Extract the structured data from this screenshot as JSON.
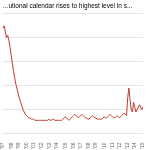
{
  "chart_data": {
    "type": "line",
    "title": "...utional calendar rises to highest level in s...",
    "categories": [
      "'97",
      null,
      null,
      null,
      null,
      null,
      null,
      "'98",
      null,
      null,
      null,
      null,
      null,
      "'99",
      null,
      null,
      null,
      null,
      null,
      null,
      "'00",
      null,
      null,
      null,
      null,
      null,
      "'01",
      null,
      null,
      null,
      null,
      null,
      null,
      "'02",
      null,
      null,
      null,
      null,
      null,
      null,
      "'03",
      null,
      null,
      null,
      null,
      null,
      "'04",
      null,
      null,
      null,
      null,
      null,
      null,
      "'05",
      null,
      null,
      null,
      null,
      null,
      null,
      "'06",
      null,
      null,
      null,
      null,
      null,
      "'07",
      null,
      null,
      null,
      null,
      null,
      null,
      "'08",
      null,
      null,
      null,
      null,
      null,
      "'09",
      null,
      null,
      null,
      null,
      null,
      null,
      "'10",
      null,
      null,
      null,
      null,
      null,
      null,
      "'11",
      null,
      null,
      null,
      null,
      null,
      "'12",
      null,
      null,
      null,
      null,
      null,
      null,
      "'13",
      null,
      null,
      null,
      null,
      null,
      "'14",
      null,
      null,
      null,
      null,
      null,
      null,
      "'15"
    ],
    "values": [
      88,
      90,
      85,
      80,
      82,
      78,
      72,
      65,
      58,
      52,
      46,
      41,
      37,
      33,
      29,
      26,
      23,
      20,
      18,
      16,
      15,
      14,
      13,
      13,
      12,
      12,
      12,
      11,
      11,
      11,
      11,
      11,
      11,
      11,
      11,
      11,
      11,
      11,
      11,
      12,
      11,
      11,
      12,
      12,
      11,
      11,
      11,
      11,
      11,
      11,
      11,
      12,
      13,
      14,
      13,
      12,
      11,
      12,
      13,
      14,
      15,
      16,
      15,
      14,
      13,
      14,
      15,
      16,
      15,
      14,
      13,
      13,
      12,
      12,
      13,
      14,
      15,
      14,
      13,
      13,
      12,
      12,
      12,
      12,
      12,
      13,
      14,
      13,
      13,
      14,
      15,
      16,
      15,
      14,
      13,
      13,
      14,
      15,
      14,
      13,
      14,
      15,
      16,
      17,
      16,
      15,
      30,
      38,
      28,
      20,
      18,
      26,
      22,
      18,
      20,
      22,
      24,
      22,
      20,
      22
    ],
    "color": "#c0392b",
    "ylim": [
      0,
      100
    ],
    "yticks": [
      0,
      20,
      40,
      60,
      80,
      100
    ],
    "grid": true,
    "tick_labels": "x"
  }
}
